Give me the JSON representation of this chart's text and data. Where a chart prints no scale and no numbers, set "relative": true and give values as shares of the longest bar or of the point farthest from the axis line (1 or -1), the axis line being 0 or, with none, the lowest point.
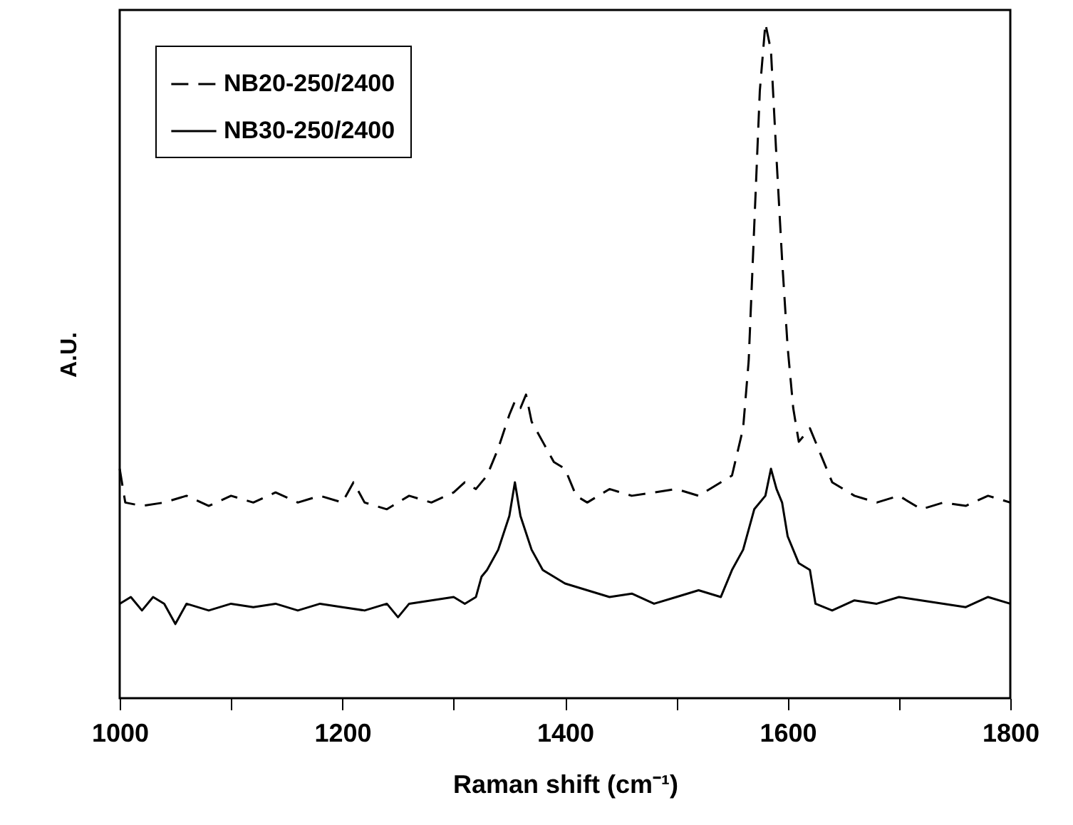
{
  "chart_data": {
    "type": "line",
    "relative": true,
    "xlabel": "Raman shift (cm⁻¹)",
    "ylabel": "A.U.",
    "xlim": [
      1000,
      1800
    ],
    "xticks": [
      1000,
      {
        "value": 1100,
        "label": null
      },
      1200,
      {
        "value": 1300,
        "label": null
      },
      1400,
      {
        "value": 1500,
        "label": null
      },
      1600,
      {
        "value": 1700,
        "label": null
      },
      1800
    ],
    "legend": "top left",
    "grid": false,
    "marker": "none",
    "series": [
      {
        "name": "NB20-250/2400",
        "color": "#000000",
        "line_style": "dashed",
        "x": [
          1000,
          1005,
          1020,
          1040,
          1060,
          1080,
          1100,
          1120,
          1140,
          1160,
          1180,
          1200,
          1210,
          1220,
          1240,
          1260,
          1280,
          1300,
          1310,
          1320,
          1330,
          1340,
          1350,
          1355,
          1360,
          1365,
          1370,
          1380,
          1390,
          1400,
          1410,
          1420,
          1440,
          1460,
          1480,
          1500,
          1520,
          1540,
          1550,
          1560,
          1565,
          1570,
          1575,
          1580,
          1585,
          1590,
          1595,
          1600,
          1605,
          1610,
          1620,
          1630,
          1640,
          1660,
          1680,
          1700,
          1720,
          1740,
          1760,
          1780,
          1800
        ],
        "values": [
          0.34,
          0.29,
          0.285,
          0.29,
          0.3,
          0.285,
          0.3,
          0.29,
          0.305,
          0.29,
          0.3,
          0.29,
          0.32,
          0.29,
          0.28,
          0.3,
          0.29,
          0.305,
          0.32,
          0.31,
          0.33,
          0.37,
          0.42,
          0.44,
          0.43,
          0.45,
          0.41,
          0.38,
          0.35,
          0.34,
          0.3,
          0.29,
          0.31,
          0.3,
          0.305,
          0.31,
          0.3,
          0.32,
          0.33,
          0.4,
          0.5,
          0.7,
          0.9,
          1.0,
          0.96,
          0.8,
          0.65,
          0.52,
          0.43,
          0.38,
          0.4,
          0.36,
          0.32,
          0.3,
          0.29,
          0.3,
          0.28,
          0.29,
          0.285,
          0.3,
          0.29
        ]
      },
      {
        "name": "NB30-250/2400",
        "color": "#000000",
        "line_style": "solid",
        "x": [
          1000,
          1010,
          1020,
          1030,
          1040,
          1050,
          1060,
          1080,
          1100,
          1120,
          1140,
          1160,
          1180,
          1200,
          1220,
          1240,
          1250,
          1260,
          1280,
          1300,
          1310,
          1320,
          1325,
          1330,
          1340,
          1350,
          1355,
          1360,
          1370,
          1380,
          1390,
          1400,
          1420,
          1440,
          1460,
          1480,
          1500,
          1520,
          1540,
          1550,
          1560,
          1570,
          1580,
          1585,
          1590,
          1595,
          1600,
          1610,
          1620,
          1625,
          1640,
          1660,
          1680,
          1700,
          1720,
          1740,
          1760,
          1780,
          1800
        ],
        "values": [
          0.14,
          0.15,
          0.13,
          0.15,
          0.14,
          0.11,
          0.14,
          0.13,
          0.14,
          0.135,
          0.14,
          0.13,
          0.14,
          0.135,
          0.13,
          0.14,
          0.12,
          0.14,
          0.145,
          0.15,
          0.14,
          0.15,
          0.18,
          0.19,
          0.22,
          0.27,
          0.32,
          0.27,
          0.22,
          0.19,
          0.18,
          0.17,
          0.16,
          0.15,
          0.155,
          0.14,
          0.15,
          0.16,
          0.15,
          0.19,
          0.22,
          0.28,
          0.3,
          0.34,
          0.31,
          0.29,
          0.24,
          0.2,
          0.19,
          0.14,
          0.13,
          0.145,
          0.14,
          0.15,
          0.145,
          0.14,
          0.135,
          0.15,
          0.14
        ]
      }
    ]
  }
}
